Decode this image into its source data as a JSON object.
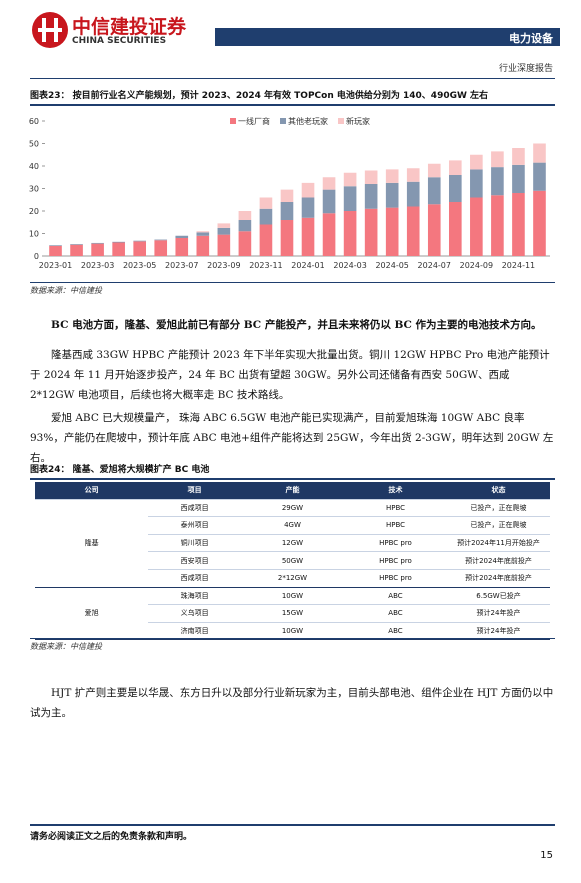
{
  "header": {
    "company_cn": "中信建投证券",
    "company_en": "CHINA SECURITIES",
    "sector": "电力设备",
    "report_type": "行业深度报告"
  },
  "figure23": {
    "label": "图表23：",
    "title": "按目前行业名义产能规划，预计 2023、2024 年有效 TOPCon 电池供给分别为 140、490GW 左右",
    "source": "数据来源：中信建投"
  },
  "chart_data": {
    "type": "stacked-bar",
    "categories": [
      "2023-01",
      null,
      "2023-03",
      null,
      "2023-05",
      null,
      "2023-07",
      null,
      "2023-09",
      null,
      "2023-11",
      null,
      "2024-01",
      null,
      "2024-03",
      null,
      "2024-05",
      null,
      "2024-07",
      null,
      "2024-09",
      null,
      "2024-11",
      null
    ],
    "series": [
      {
        "name": "一线厂商",
        "color": "#f4777f",
        "values": [
          4.5,
          5,
          5.5,
          6,
          6.5,
          7,
          8,
          9,
          9.5,
          11,
          14,
          16,
          17,
          19,
          20,
          21,
          21.5,
          22,
          23,
          24,
          26,
          27,
          28,
          29
        ]
      },
      {
        "name": "其他老玩家",
        "color": "#8497b0",
        "values": [
          0.3,
          0.3,
          0.3,
          0.3,
          0.3,
          0.3,
          1,
          1.5,
          3,
          5,
          7,
          8,
          9,
          10.5,
          11,
          11,
          11,
          11,
          12,
          12,
          12.5,
          12.5,
          12.5,
          12.5
        ]
      },
      {
        "name": "新玩家",
        "color": "#f9c6c6",
        "values": [
          0,
          0,
          0,
          0,
          0,
          0,
          0,
          0.5,
          2,
          4,
          5,
          5.5,
          6.5,
          5.5,
          6,
          6,
          6,
          6,
          6,
          6.5,
          6.5,
          7,
          7.5,
          8.5
        ]
      }
    ],
    "ylim": [
      0,
      60
    ],
    "yticks": [
      0,
      10,
      20,
      30,
      40,
      50,
      60
    ],
    "grid": false,
    "legend": "top"
  },
  "paragraphs": [
    "BC 电池方面，隆基、爱旭此前已有部分 BC 产能投产，并且未来将仍以 BC 作为主要的电池技术方向。",
    "隆基西咸 33GW HPBC 产能预计 2023 年下半年实现大批量出货。铜川 12GW HPBC Pro 电池产能预计于 2024 年 11 月开始逐步投产，24 年 BC 出货有望超 30GW。另外公司还储备有西安 50GW、西咸 2*12GW 电池项目，后续也将大概率走 BC 技术路线。",
    "爱旭 ABC 已大规模量产， 珠海 ABC 6.5GW 电池产能已实现满产，目前爱旭珠海 10GW ABC 良率 93%，产能仍在爬坡中，预计年底 ABC 电池+组件产能将达到 25GW，今年出货 2-3GW，明年达到 20GW 左右。",
    "HJT 扩产则主要是以华晟、东方日升以及部分行业新玩家为主，目前头部电池、组件企业在 HJT 方面仍以中试为主。"
  ],
  "figure24": {
    "label": "图表24：",
    "title": "隆基、爱旭将大规模扩产 BC 电池",
    "source": "数据来源：中信建投"
  },
  "table": {
    "columns": [
      "公司",
      "项目",
      "产能",
      "技术",
      "状态"
    ],
    "groups": [
      {
        "company": "隆基",
        "rows": [
          [
            "西咸项目",
            "29GW",
            "HPBC",
            "已投产，正在爬坡"
          ],
          [
            "泰州项目",
            "4GW",
            "HPBC",
            "已投产，正在爬坡"
          ],
          [
            "铜川项目",
            "12GW",
            "HPBC pro",
            "预计2024年11月开始投产"
          ],
          [
            "西安项目",
            "50GW",
            "HPBC pro",
            "预计2024年底前投产"
          ],
          [
            "西咸项目",
            "2*12GW",
            "HPBC pro",
            "预计2024年底前投产"
          ]
        ]
      },
      {
        "company": "爱旭",
        "rows": [
          [
            "珠海项目",
            "10GW",
            "ABC",
            "6.5GW已投产"
          ],
          [
            "义乌项目",
            "15GW",
            "ABC",
            "预计24年投产"
          ],
          [
            "济南项目",
            "10GW",
            "ABC",
            "预计24年投产"
          ]
        ]
      }
    ]
  },
  "footer": {
    "disclaimer": "请务必阅读正文之后的免责条款和声明。",
    "page": "15"
  }
}
